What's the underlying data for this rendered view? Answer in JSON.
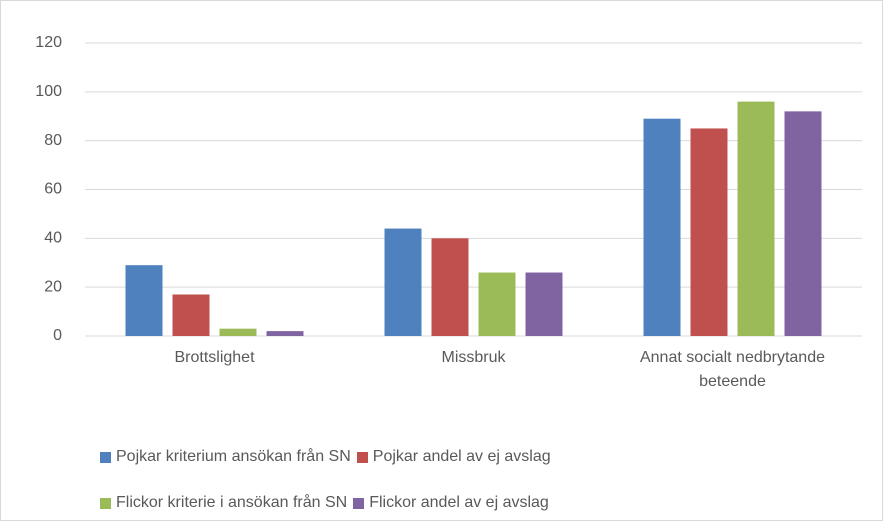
{
  "chart_data": {
    "type": "bar",
    "categories": [
      "Brottslighet",
      "Missbruk",
      "Annat socialt nedbrytande beteende"
    ],
    "series": [
      {
        "name": "Pojkar kriterium ansökan från SN",
        "color": "#4e81bd",
        "values": [
          29,
          44,
          89
        ]
      },
      {
        "name": "Pojkar andel av ej avslag",
        "color": "#c0504d",
        "values": [
          17,
          40,
          85
        ]
      },
      {
        "name": "Flickor kriterie i ansökan från SN",
        "color": "#9bbb59",
        "values": [
          3,
          26,
          96
        ]
      },
      {
        "name": "Flickor andel av ej avslag",
        "color": "#8064a2",
        "values": [
          2,
          26,
          92
        ]
      }
    ],
    "ylim": [
      0,
      120
    ],
    "yticks": [
      0,
      20,
      40,
      60,
      80,
      100,
      120
    ],
    "grid": true,
    "legend": "bottom"
  }
}
